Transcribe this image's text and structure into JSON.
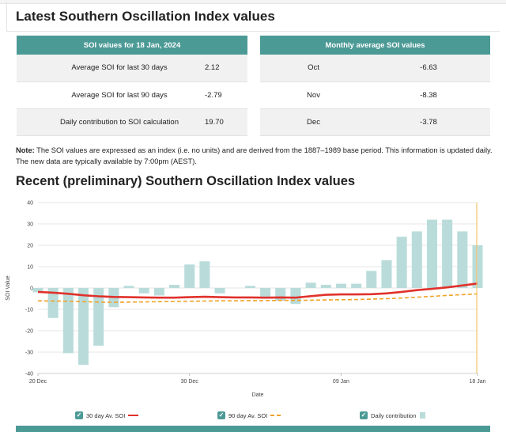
{
  "page": {
    "title": "Latest Southern Oscillation Index values",
    "subtitle": "Recent (preliminary) Southern Oscillation Index values"
  },
  "soi_table": {
    "header": "SOI values for 18 Jan, 2024",
    "rows": [
      {
        "label": "Average SOI for last 30 days",
        "value": "2.12"
      },
      {
        "label": "Average SOI for last 90 days",
        "value": "-2.79"
      },
      {
        "label": "Daily contribution to SOI calculation",
        "value": "19.70"
      }
    ]
  },
  "monthly_table": {
    "header": "Monthly average SOI values",
    "rows": [
      {
        "label": "Oct",
        "value": "-6.63"
      },
      {
        "label": "Nov",
        "value": "-8.38"
      },
      {
        "label": "Dec",
        "value": "-3.78"
      }
    ]
  },
  "note": {
    "label": "Note:",
    "text": " The SOI values are expressed as an index (i.e. no units) and are derived from the 1887–1989 base period. This information is updated daily. The new data are typically available by 7:00pm (AEST)."
  },
  "legend": {
    "item_30": "30 day Av. SOI",
    "item_90": "90 day Av. SOI",
    "item_daily": "Daily contribution"
  },
  "colors": {
    "accent": "#4c9a96",
    "bar": "#b9dcda",
    "line_30": "#e0312b",
    "line_90": "#f0a127",
    "cursor": "#f2c66b"
  },
  "chart_data": {
    "type": "bar",
    "ylabel": "SOI Value",
    "xlabel": "Date",
    "ylim": [
      -40,
      40
    ],
    "yticks": [
      40,
      30,
      20,
      10,
      0,
      -10,
      -20,
      -30,
      -40
    ],
    "x_tick_labels": [
      {
        "day_index": 0,
        "label": "20 Dec"
      },
      {
        "day_index": 10,
        "label": "30 Dec"
      },
      {
        "day_index": 20,
        "label": "09 Jan"
      },
      {
        "day_index": 29,
        "label": "18 Jan"
      }
    ],
    "grid": true,
    "series": [
      {
        "name": "Daily contribution",
        "kind": "bar",
        "values": [
          -2,
          -14,
          -30.5,
          -36,
          -27,
          -9,
          1,
          -2.5,
          -3.5,
          1.5,
          11,
          12.5,
          -2.5,
          0,
          1,
          -5,
          -6,
          -7.5,
          2.5,
          1.5,
          2,
          2,
          8,
          13,
          24,
          26.5,
          32,
          32,
          26.5,
          20
        ]
      },
      {
        "name": "30 day Av. SOI",
        "kind": "line",
        "values": [
          -1.8,
          -2.2,
          -2.7,
          -3.4,
          -3.9,
          -4.2,
          -4.3,
          -4.4,
          -4.5,
          -4.5,
          -4.3,
          -4.1,
          -4.3,
          -4.4,
          -4.4,
          -4.5,
          -4.4,
          -4.5,
          -3.8,
          -3.2,
          -3.0,
          -3.0,
          -2.9,
          -2.5,
          -1.8,
          -1.0,
          -0.4,
          0.3,
          1.2,
          2.12
        ]
      },
      {
        "name": "90 day Av. SOI",
        "kind": "line",
        "values": [
          -6.0,
          -6.1,
          -6.2,
          -6.4,
          -6.6,
          -6.7,
          -6.6,
          -6.5,
          -6.4,
          -6.3,
          -6.2,
          -6.1,
          -6.0,
          -6.0,
          -5.9,
          -5.9,
          -5.8,
          -5.8,
          -5.7,
          -5.6,
          -5.5,
          -5.4,
          -5.2,
          -5.0,
          -4.7,
          -4.3,
          -3.9,
          -3.5,
          -3.1,
          -2.79
        ]
      }
    ]
  }
}
